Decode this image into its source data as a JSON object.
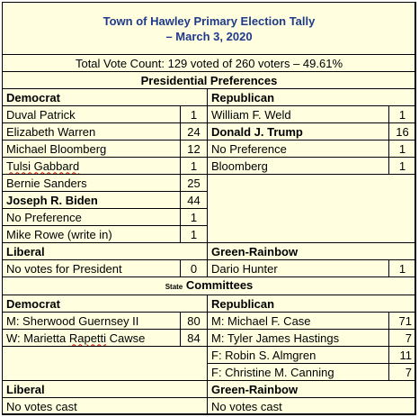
{
  "title_line1": "Town of Hawley Primary Election Tally",
  "title_line2": "– March 3, 2020",
  "total_vote": "Total Vote Count:  129 voted of 260 voters – 49.61%",
  "presidential_heading": "Presidential Preferences",
  "presidential": {
    "democrat_label": "Democrat",
    "republican_label": "Republican",
    "democrat": [
      {
        "name": "Duval Patrick",
        "votes": "1"
      },
      {
        "name": "Elizabeth Warren",
        "votes": "24"
      },
      {
        "name": "Michael Bloomberg",
        "votes": "12"
      },
      {
        "name": "Tulsi Gabbard",
        "votes": "1"
      },
      {
        "name": "Bernie Sanders",
        "votes": "25"
      },
      {
        "name": "Joseph R. Biden",
        "votes": "44"
      },
      {
        "name": "No Preference",
        "votes": "1"
      },
      {
        "name": "Mike Rowe (write in)",
        "votes": "1"
      }
    ],
    "republican": [
      {
        "name": "William F. Weld",
        "votes": "1"
      },
      {
        "name": "Donald J. Trump",
        "votes": "16"
      },
      {
        "name": "No Preference",
        "votes": "1"
      },
      {
        "name": "Bloomberg",
        "votes": "1"
      }
    ],
    "liberal_label": "Liberal",
    "green_label": "Green-Rainbow",
    "liberal": [
      {
        "name": "No votes for President",
        "votes": "0"
      }
    ],
    "green": [
      {
        "name": "Dario Hunter",
        "votes": "1"
      }
    ]
  },
  "committees_heading_prefix": "State",
  "committees_heading": "Committees",
  "committees": {
    "democrat_label": "Democrat",
    "republican_label": "Republican",
    "democrat": [
      {
        "name": "M: Sherwood Guernsey II",
        "votes": "80"
      },
      {
        "name": "W: Marietta Rapetti Cawse",
        "votes": "84"
      }
    ],
    "republican": [
      {
        "name": "M: Michael F. Case",
        "votes": "71"
      },
      {
        "name": "M: Tyler James Hastings",
        "votes": "7"
      },
      {
        "name": "F: Robin S. Almgren",
        "votes": "11"
      },
      {
        "name": "F: Christine M. Canning",
        "votes": "7"
      }
    ],
    "liberal_label": "Liberal",
    "green_label": "Green-Rainbow",
    "liberal_text": "No votes cast",
    "green_text": "No votes cast"
  }
}
